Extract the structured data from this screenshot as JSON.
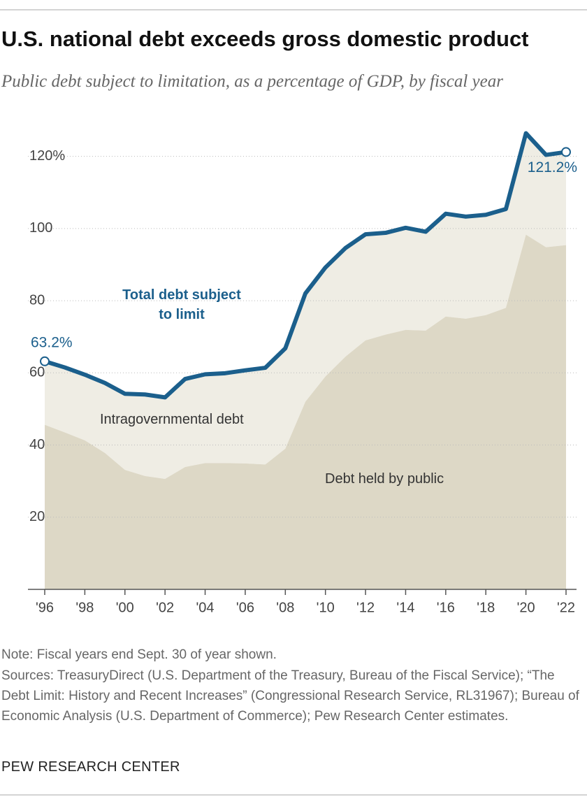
{
  "chart_data": {
    "type": "line-area",
    "title": "U.S. national debt exceeds gross domestic product",
    "subtitle": "Public debt subject to limitation, as a percentage of GDP, by fiscal year",
    "x": [
      1996,
      1997,
      1998,
      1999,
      2000,
      2001,
      2002,
      2003,
      2004,
      2005,
      2006,
      2007,
      2008,
      2009,
      2010,
      2011,
      2012,
      2013,
      2014,
      2015,
      2016,
      2017,
      2018,
      2019,
      2020,
      2021,
      2022
    ],
    "xlim": [
      1996,
      2022
    ],
    "xticks": [
      {
        "value": 1996,
        "label": "'96"
      },
      {
        "value": 1998,
        "label": "'98"
      },
      {
        "value": 2000,
        "label": "'00"
      },
      {
        "value": 2002,
        "label": "'02"
      },
      {
        "value": 2004,
        "label": "'04"
      },
      {
        "value": 2006,
        "label": "'06"
      },
      {
        "value": 2008,
        "label": "'08"
      },
      {
        "value": 2010,
        "label": "'10"
      },
      {
        "value": 2012,
        "label": "'12"
      },
      {
        "value": 2014,
        "label": "'14"
      },
      {
        "value": 2016,
        "label": "'16"
      },
      {
        "value": 2018,
        "label": "'18"
      },
      {
        "value": 2020,
        "label": "'20"
      },
      {
        "value": 2022,
        "label": "'22"
      }
    ],
    "ylim": [
      0,
      130
    ],
    "yticks": [
      20,
      40,
      60,
      80,
      100,
      {
        "value": 120,
        "label": "120%"
      }
    ],
    "grid": true,
    "series": [
      {
        "name": "Total debt subject to limit",
        "kind": "line",
        "color": "#1b5f8c",
        "values": [
          63.2,
          61.5,
          59.5,
          57.2,
          54.2,
          54.0,
          53.2,
          58.3,
          59.6,
          59.9,
          60.7,
          61.4,
          66.8,
          82.0,
          89.2,
          94.6,
          98.4,
          98.8,
          100.2,
          99.1,
          104.1,
          103.3,
          103.8,
          105.4,
          126.4,
          120.4,
          121.2
        ],
        "value_labels": [
          "63.2%",
          null,
          null,
          null,
          null,
          null,
          null,
          null,
          null,
          null,
          null,
          null,
          null,
          null,
          null,
          null,
          null,
          null,
          null,
          null,
          null,
          null,
          null,
          null,
          null,
          null,
          "121.2%"
        ]
      },
      {
        "name": "Debt held by public",
        "kind": "area",
        "color": "#ddd8c6",
        "values": [
          45.6,
          43.5,
          41.3,
          37.8,
          33.1,
          31.4,
          30.6,
          33.9,
          35.0,
          35.0,
          34.9,
          34.6,
          39.0,
          52.0,
          59.0,
          64.5,
          69.0,
          70.6,
          71.9,
          71.7,
          75.6,
          75.0,
          76.0,
          78.0,
          98.3,
          94.8,
          95.4
        ]
      }
    ],
    "band": {
      "name": "Intragovernmental debt",
      "color": "#efede4"
    },
    "note": "Note: Fiscal years end Sept. 30 of year shown.",
    "sources": "Sources: TreasuryDirect (U.S. Department of the Treasury, Bureau of the Fiscal Service); “The Debt Limit: History and Recent Increases” (Congressional Research Service, RL31967); Bureau of Economic Analysis (U.S. Department of Commerce); Pew Research Center estimates.",
    "footer": "PEW RESEARCH CENTER"
  }
}
